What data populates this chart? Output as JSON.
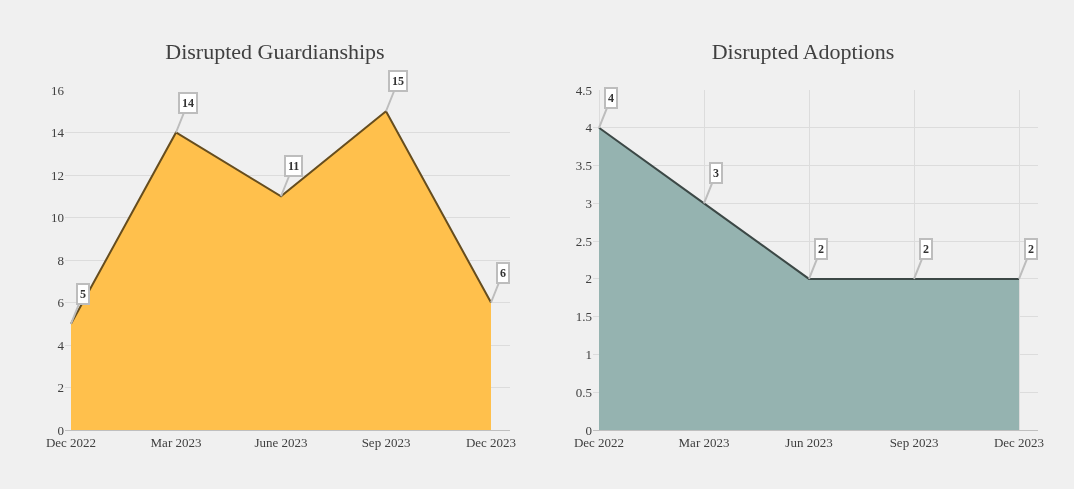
{
  "chart_data": [
    {
      "type": "area",
      "title": "Disrupted Guardianships",
      "categories": [
        "Dec 2022",
        "Mar 2023",
        "June 2023",
        "Sep 2023",
        "Dec 2023"
      ],
      "series": [
        {
          "color": "#ffc04c",
          "values": [
            5,
            14,
            11,
            15,
            6
          ]
        }
      ],
      "ylim": [
        0,
        16
      ],
      "yticks": [
        0,
        2,
        4,
        6,
        8,
        10,
        12,
        14,
        16
      ],
      "grid": "y",
      "data_labels": true
    },
    {
      "type": "area",
      "title": "Disrupted Adoptions",
      "categories": [
        "Dec 2022",
        "Mar 2023",
        "Jun 2023",
        "Sep 2023",
        "Dec 2023"
      ],
      "series": [
        {
          "color": "#95b3b0",
          "values": [
            4,
            3,
            2,
            2,
            2
          ]
        }
      ],
      "ylim": [
        0,
        4.5
      ],
      "yticks": [
        0,
        0.5,
        1,
        1.5,
        2,
        2.5,
        3,
        3.5,
        4,
        4.5
      ],
      "grid": true,
      "data_labels": true
    }
  ]
}
